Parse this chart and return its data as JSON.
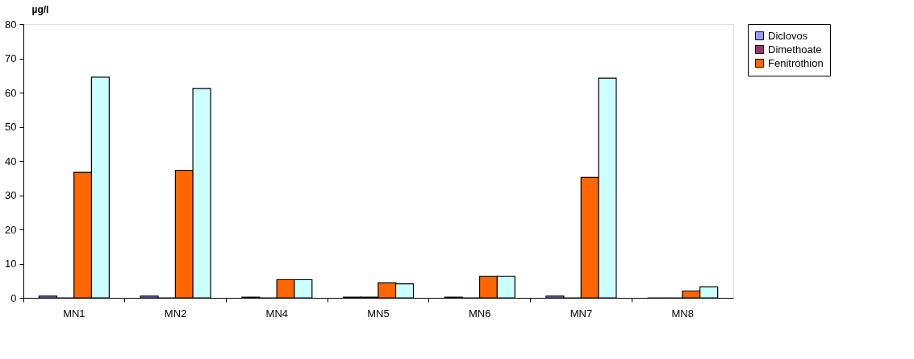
{
  "chart_data": {
    "type": "bar",
    "ylabel": "µg/l",
    "categories": [
      "MN1",
      "MN2",
      "MN4",
      "MN5",
      "MN6",
      "MN7",
      "MN8"
    ],
    "series": [
      {
        "name": "Diclovos",
        "color": "#9999ff",
        "values": [
          0.5,
          0.5,
          0.2,
          0.2,
          0.2,
          0.5,
          0
        ]
      },
      {
        "name": "Dimethoate",
        "color": "#993366",
        "values": [
          0,
          0,
          0,
          0.2,
          0,
          0,
          0
        ]
      },
      {
        "name": "Fenitrothion",
        "color": "#ff6600",
        "values": [
          36.7,
          37.3,
          5.3,
          4.4,
          6.3,
          35.2,
          2.0
        ]
      },
      {
        "color": "#ccffff",
        "values": [
          64.5,
          61.2,
          5.3,
          4.1,
          6.3,
          64.2,
          3.2
        ]
      }
    ],
    "ylim": [
      0,
      80
    ],
    "yticks": [
      0,
      10,
      20,
      30,
      40,
      50,
      60,
      70,
      80
    ],
    "grid": false,
    "legend": "right"
  }
}
